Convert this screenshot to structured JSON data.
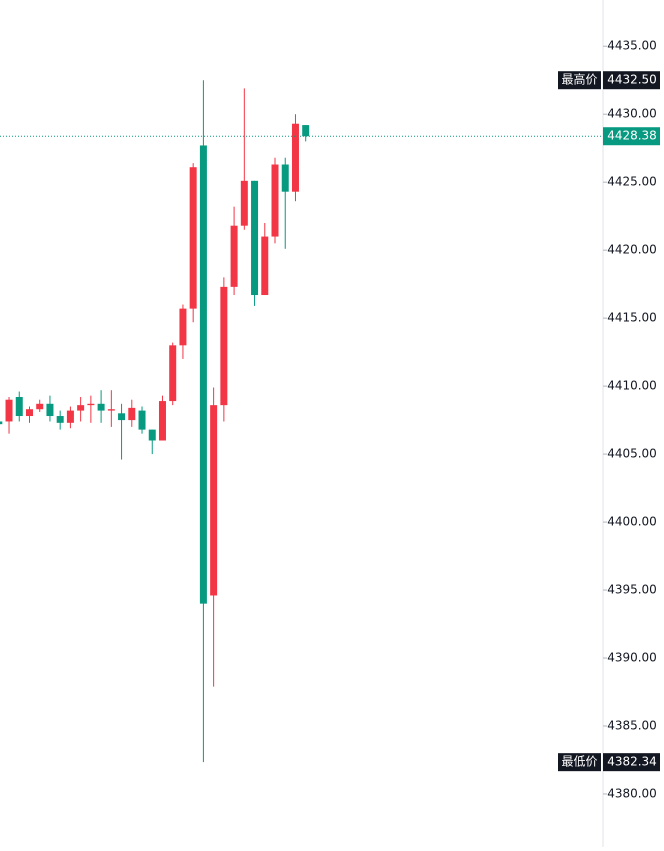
{
  "chart_data": {
    "type": "candlestick",
    "open": [
      4407.4,
      4407.4,
      4409.2,
      4407.8,
      4408.3,
      4408.7,
      4407.8,
      4407.3,
      4408.2,
      4408.6,
      4408.7,
      4408.2,
      4408.0,
      4407.5,
      4408.2,
      4406.8,
      4406.0,
      4408.9,
      4413.0,
      4415.7,
      4427.7,
      4394.6,
      4408.6,
      4417.3,
      4421.8,
      4425.1,
      4416.7,
      4421.0,
      4426.3,
      4424.3,
      4429.2
    ],
    "high": [
      4407.6,
      4409.2,
      4409.6,
      4408.5,
      4409.0,
      4409.3,
      4408.2,
      4408.5,
      4409.2,
      4409.3,
      4409.7,
      4409.7,
      4408.7,
      4409.0,
      4408.5,
      4406.8,
      4409.3,
      4413.2,
      4416.0,
      4426.4,
      4432.5,
      4409.9,
      4418.0,
      4423.2,
      4431.9,
      4425.1,
      4422.0,
      4426.8,
      4426.8,
      4430.0,
      4429.2
    ],
    "low": [
      4407.0,
      4406.5,
      4407.4,
      4407.3,
      4408.1,
      4407.4,
      4406.8,
      4406.9,
      4407.4,
      4407.3,
      4407.3,
      4407.0,
      4404.6,
      4407.0,
      4406.5,
      4405.0,
      4406.0,
      4408.6,
      4412.0,
      4414.7,
      4382.34,
      4387.9,
      4407.4,
      4416.7,
      4421.5,
      4415.9,
      4416.7,
      4420.5,
      4420.1,
      4423.6,
      4428.0
    ],
    "close": [
      4407.2,
      4409.0,
      4407.8,
      4408.3,
      4408.7,
      4407.8,
      4407.3,
      4408.2,
      4408.6,
      4408.7,
      4408.2,
      4408.3,
      4407.5,
      4408.4,
      4406.8,
      4406.0,
      4408.9,
      4413.0,
      4415.7,
      4426.1,
      4394.0,
      4408.6,
      4417.3,
      4421.8,
      4425.1,
      4416.7,
      4421.0,
      4426.3,
      4424.3,
      4429.3,
      4428.38
    ],
    "up_color": "#f23645",
    "down_color": "#089981",
    "ylim": [
      4376.1,
      4438.4
    ],
    "yticks": [
      {
        "value": 4380,
        "label": "4380.00"
      },
      {
        "value": 4385,
        "label": "4385.00"
      },
      {
        "value": 4390,
        "label": "4390.00"
      },
      {
        "value": 4395,
        "label": "4395.00"
      },
      {
        "value": 4400,
        "label": "4400.00"
      },
      {
        "value": 4405,
        "label": "4405.00"
      },
      {
        "value": 4410,
        "label": "4410.00"
      },
      {
        "value": 4415,
        "label": "4415.00"
      },
      {
        "value": 4420,
        "label": "4420.00"
      },
      {
        "value": 4425,
        "label": "4425.00"
      },
      {
        "value": 4430,
        "label": "4430.00"
      },
      {
        "value": 4435,
        "label": "4435.00"
      }
    ],
    "high_marker": {
      "text": "最高价",
      "value": 4432.5,
      "label": "4432.50"
    },
    "low_marker": {
      "text": "最低价",
      "value": 4382.34,
      "label": "4382.34"
    },
    "last_price": 4428.38
  }
}
